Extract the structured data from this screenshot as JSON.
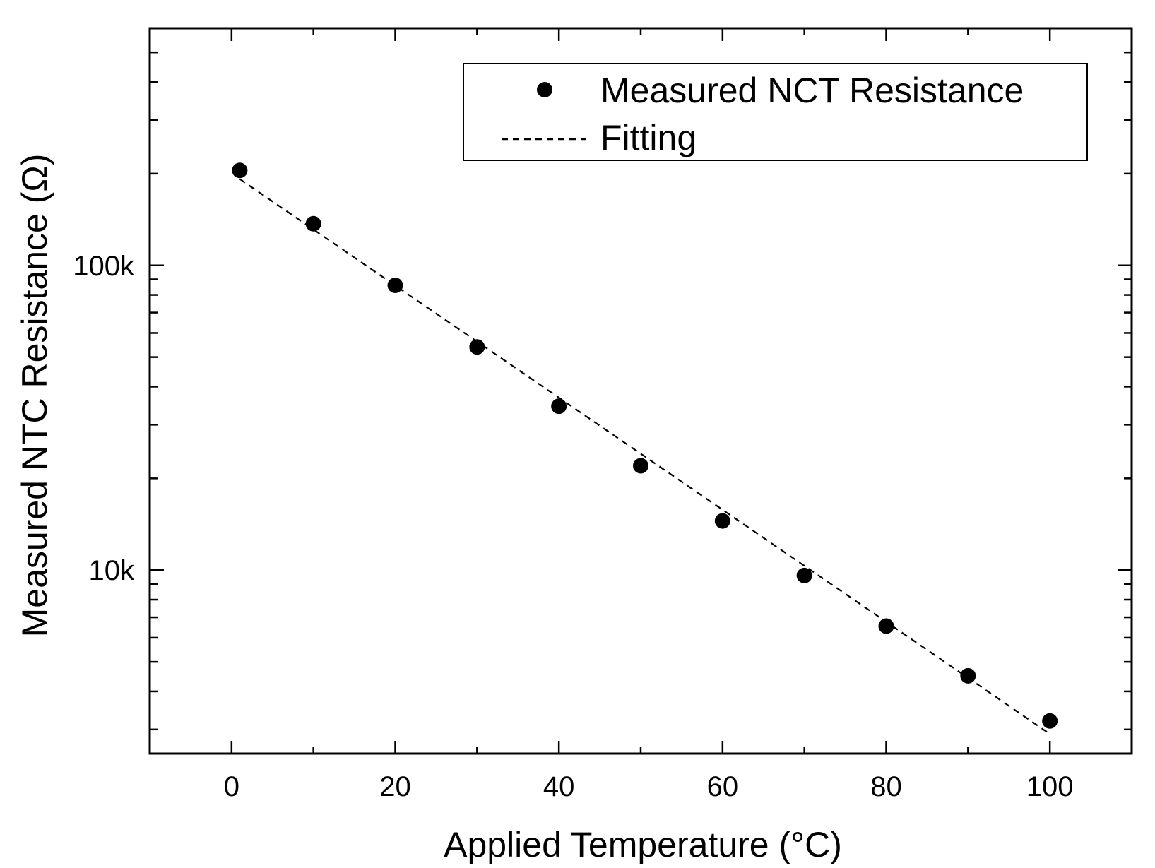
{
  "chart_data": {
    "type": "scatter",
    "xlabel": "Applied Temperature (°C)",
    "ylabel": "Measured NTC Resistance (Ω)",
    "xlim": [
      -10,
      110
    ],
    "ylim": [
      2500,
      600000
    ],
    "yscale": "log",
    "xticks": [
      0,
      20,
      40,
      60,
      80,
      100
    ],
    "xtick_labels": [
      "0",
      "20",
      "40",
      "60",
      "80",
      "100"
    ],
    "yticks": [
      10000,
      100000
    ],
    "ytick_labels": [
      "10k",
      "100k"
    ],
    "legend_position": "top-right",
    "series": [
      {
        "name": "Measured NCT Resistance",
        "style": "markers",
        "x": [
          1,
          10,
          20,
          30,
          40,
          50,
          60,
          70,
          80,
          90,
          100
        ],
        "y": [
          205000,
          137000,
          86000,
          54000,
          34500,
          22000,
          14500,
          9600,
          6550,
          4500,
          3200
        ]
      },
      {
        "name": "Fitting",
        "style": "dashed-line",
        "x": [
          1,
          100
        ],
        "y": [
          192000,
          2900
        ]
      }
    ],
    "colors": {
      "marker": "#000000",
      "line": "#000000"
    }
  }
}
